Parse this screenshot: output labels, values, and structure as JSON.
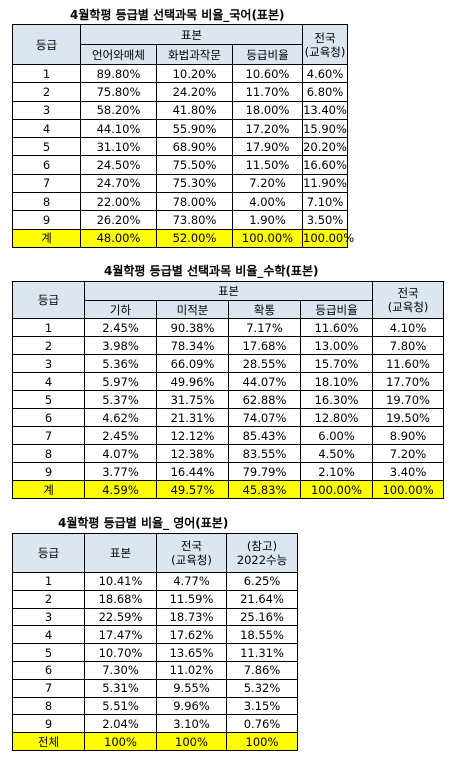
{
  "tables": [
    {
      "title": "4월학평 등급별 선택과목 비율_국어(표본)",
      "header": {
        "grade": "등급",
        "sample": "표본",
        "national": [
          "전국",
          "(교육청)"
        ],
        "columns": [
          "언어와매체",
          "화법과작문",
          "등급비율"
        ]
      },
      "rows": [
        [
          "1",
          "89.80%",
          "10.20%",
          "10.60%",
          "4.60%"
        ],
        [
          "2",
          "75.80%",
          "24.20%",
          "11.70%",
          "6.80%"
        ],
        [
          "3",
          "58.20%",
          "41.80%",
          "18.00%",
          "13.40%"
        ],
        [
          "4",
          "44.10%",
          "55.90%",
          "17.20%",
          "15.90%"
        ],
        [
          "5",
          "31.10%",
          "68.90%",
          "17.90%",
          "20.20%"
        ],
        [
          "6",
          "24.50%",
          "75.50%",
          "11.50%",
          "16.60%"
        ],
        [
          "7",
          "24.70%",
          "75.30%",
          "7.20%",
          "11.90%"
        ],
        [
          "8",
          "22.00%",
          "78.00%",
          "4.00%",
          "7.10%"
        ],
        [
          "9",
          "26.20%",
          "73.80%",
          "1.90%",
          "3.50%"
        ]
      ],
      "total": [
        "계",
        "48.00%",
        "52.00%",
        "100.00%",
        "100.00%"
      ]
    },
    {
      "title": "4월학평 등급별 선택과목 비율_수학(표본)",
      "header": {
        "grade": "등급",
        "sample": "표본",
        "national": [
          "전국",
          "(교육청)"
        ],
        "columns": [
          "기하",
          "미적분",
          "확통",
          "등급비율"
        ]
      },
      "rows": [
        [
          "1",
          "2.45%",
          "90.38%",
          "7.17%",
          "11.60%",
          "4.10%"
        ],
        [
          "2",
          "3.98%",
          "78.34%",
          "17.68%",
          "13.00%",
          "7.80%"
        ],
        [
          "3",
          "5.36%",
          "66.09%",
          "28.55%",
          "15.70%",
          "11.60%"
        ],
        [
          "4",
          "5.97%",
          "49.96%",
          "44.07%",
          "18.10%",
          "17.70%"
        ],
        [
          "5",
          "5.37%",
          "31.75%",
          "62.88%",
          "16.30%",
          "19.70%"
        ],
        [
          "6",
          "4.62%",
          "21.31%",
          "74.07%",
          "12.80%",
          "19.50%"
        ],
        [
          "7",
          "2.45%",
          "12.12%",
          "85.43%",
          "6.00%",
          "8.90%"
        ],
        [
          "8",
          "4.07%",
          "12.38%",
          "83.55%",
          "4.50%",
          "7.20%"
        ],
        [
          "9",
          "3.77%",
          "16.44%",
          "79.79%",
          "2.10%",
          "3.40%"
        ]
      ],
      "total": [
        "계",
        "4.59%",
        "49.57%",
        "45.83%",
        "100.00%",
        "100.00%"
      ]
    },
    {
      "title": "4월학평 등급별 비율_ 영어(표본)",
      "header": {
        "grade": "등급",
        "sample": "표본",
        "national": [
          "전국",
          "(교육청)"
        ],
        "reference": [
          "(참고)",
          "2022수능"
        ]
      },
      "rows": [
        [
          "1",
          "10.41%",
          "4.77%",
          "6.25%"
        ],
        [
          "2",
          "18.68%",
          "11.59%",
          "21.64%"
        ],
        [
          "3",
          "22.59%",
          "18.73%",
          "25.16%"
        ],
        [
          "4",
          "17.47%",
          "17.62%",
          "18.55%"
        ],
        [
          "5",
          "10.70%",
          "13.65%",
          "11.31%"
        ],
        [
          "6",
          "7.30%",
          "11.02%",
          "7.86%"
        ],
        [
          "7",
          "5.31%",
          "9.55%",
          "5.32%"
        ],
        [
          "8",
          "5.51%",
          "9.96%",
          "3.15%"
        ],
        [
          "9",
          "2.04%",
          "3.10%",
          "0.76%"
        ]
      ],
      "total": [
        "전체",
        "100%",
        "100%",
        "100%"
      ]
    }
  ]
}
